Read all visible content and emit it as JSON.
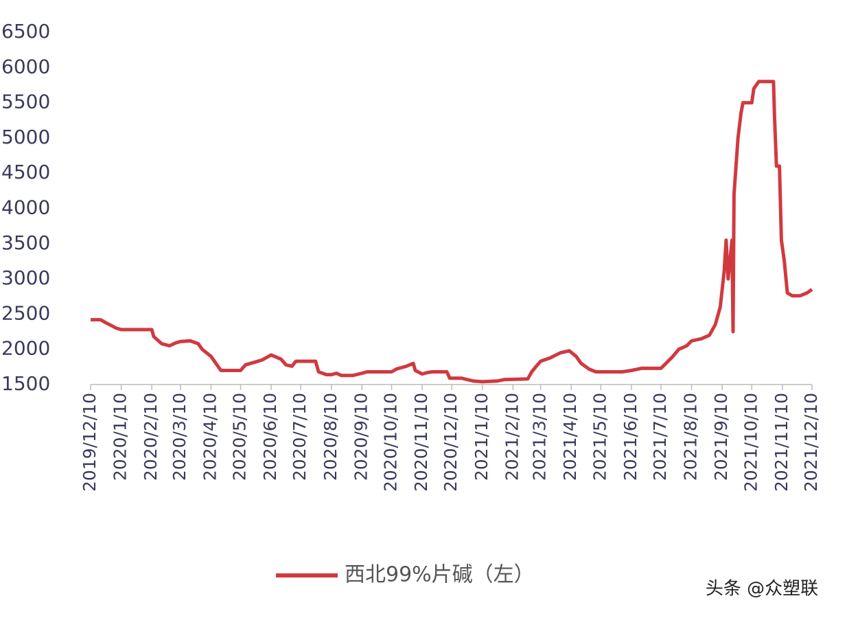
{
  "chart_data": {
    "type": "line",
    "x": [
      "2019/12/10",
      "2019/12/20",
      "2019/12/25",
      "2020/1/1",
      "2020/1/5",
      "2020/1/10",
      "2020/2/10",
      "2020/2/12",
      "2020/2/20",
      "2020/2/28",
      "2020/3/5",
      "2020/3/10",
      "2020/3/20",
      "2020/3/28",
      "2020/4/1",
      "2020/4/10",
      "2020/4/15",
      "2020/4/20",
      "2020/5/10",
      "2020/5/15",
      "2020/5/25",
      "2020/6/1",
      "2020/6/10",
      "2020/6/20",
      "2020/6/25",
      "2020/7/1",
      "2020/7/5",
      "2020/7/25",
      "2020/7/28",
      "2020/8/5",
      "2020/8/10",
      "2020/8/15",
      "2020/8/20",
      "2020/9/1",
      "2020/9/10",
      "2020/9/15",
      "2020/10/10",
      "2020/10/15",
      "2020/10/25",
      "2020/11/1",
      "2020/11/3",
      "2020/11/10",
      "2020/11/15",
      "2020/11/20",
      "2020/12/5",
      "2020/12/8",
      "2020/12/20",
      "2021/1/1",
      "2021/1/10",
      "2021/1/25",
      "2021/2/1",
      "2021/2/25",
      "2021/3/1",
      "2021/3/5",
      "2021/3/10",
      "2021/3/20",
      "2021/3/30",
      "2021/4/8",
      "2021/4/15",
      "2021/4/20",
      "2021/4/28",
      "2021/5/5",
      "2021/5/10",
      "2021/6/1",
      "2021/6/10",
      "2021/6/20",
      "2021/7/10",
      "2021/7/15",
      "2021/7/22",
      "2021/7/28",
      "2021/8/5",
      "2021/8/10",
      "2021/8/20",
      "2021/8/28",
      "2021/9/3",
      "2021/9/8",
      "2021/9/12",
      "2021/9/14",
      "2021/9/16",
      "2021/9/20",
      "2021/9/21",
      "2021/9/22",
      "2021/9/24",
      "2021/9/26",
      "2021/9/29",
      "2021/10/1",
      "2021/10/10",
      "2021/10/12",
      "2021/10/17",
      "2021/11/1",
      "2021/11/2",
      "2021/11/4",
      "2021/11/7",
      "2021/11/9",
      "2021/11/12",
      "2021/11/15",
      "2021/11/20",
      "2021/11/28",
      "2021/12/5",
      "2021/12/10"
    ],
    "series": [
      {
        "name": "西北99%片碱（左）",
        "color": "#d03a3f",
        "values": [
          2420,
          2420,
          2380,
          2330,
          2300,
          2280,
          2280,
          2180,
          2080,
          2050,
          2090,
          2110,
          2120,
          2080,
          2000,
          1900,
          1800,
          1700,
          1700,
          1780,
          1820,
          1850,
          1920,
          1860,
          1780,
          1760,
          1830,
          1830,
          1680,
          1640,
          1640,
          1660,
          1630,
          1630,
          1660,
          1680,
          1680,
          1720,
          1760,
          1800,
          1700,
          1650,
          1670,
          1680,
          1680,
          1590,
          1590,
          1550,
          1540,
          1550,
          1570,
          1580,
          1680,
          1750,
          1830,
          1880,
          1950,
          1980,
          1900,
          1800,
          1720,
          1680,
          1680,
          1680,
          1700,
          1730,
          1730,
          1800,
          1900,
          2000,
          2050,
          2120,
          2150,
          2200,
          2350,
          2600,
          3100,
          3550,
          3000,
          3550,
          2250,
          4200,
          4600,
          5000,
          5350,
          5500,
          5500,
          5700,
          5800,
          5800,
          5300,
          4600,
          4600,
          3550,
          3250,
          2800,
          2760,
          2760,
          2800,
          2850
        ]
      }
    ],
    "xlim": [
      "2019/12/10",
      "2021/12/10"
    ],
    "xticks": [
      "2019/12/10",
      "2020/1/10",
      "2020/2/10",
      "2020/3/10",
      "2020/4/10",
      "2020/5/10",
      "2020/6/10",
      "2020/7/10",
      "2020/8/10",
      "2020/9/10",
      "2020/10/10",
      "2020/11/10",
      "2020/12/10",
      "2021/1/10",
      "2021/2/10",
      "2021/3/10",
      "2021/4/10",
      "2021/5/10",
      "2021/6/10",
      "2021/7/10",
      "2021/8/10",
      "2021/9/10",
      "2021/10/10",
      "2021/11/10",
      "2021/12/10"
    ],
    "ylim": [
      1500,
      6500
    ],
    "yticks": [
      1500,
      2000,
      2500,
      3000,
      3500,
      4000,
      4500,
      5000,
      5500,
      6000,
      6500
    ],
    "grid": false,
    "legend": "bottom",
    "watermark": "头条 @众塑联"
  }
}
